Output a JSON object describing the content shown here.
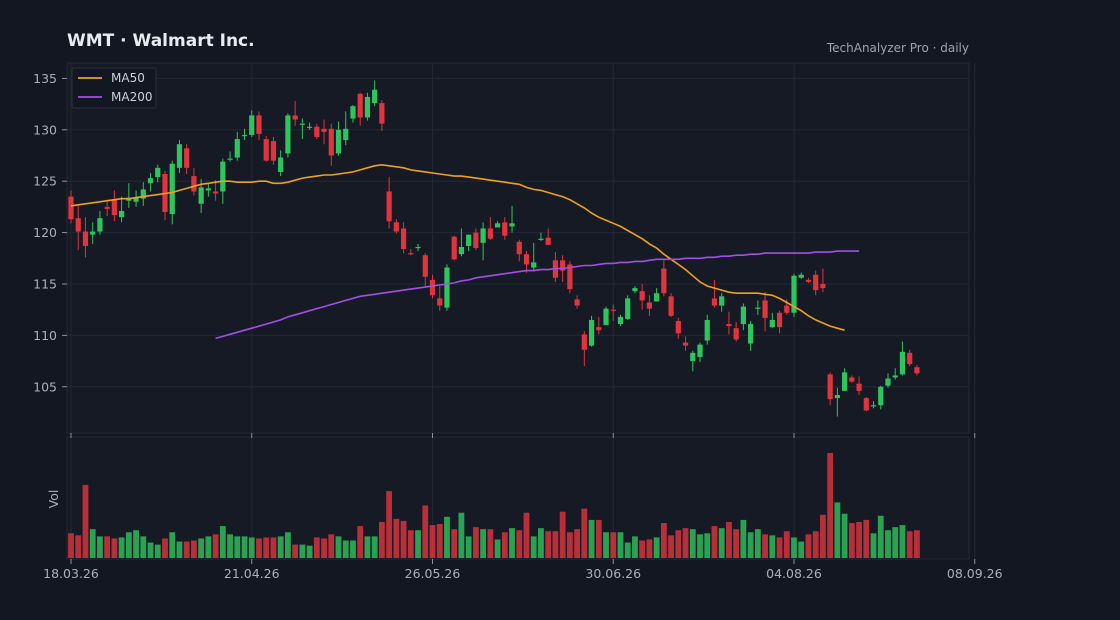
{
  "header": {
    "title": "WMT  ·  Walmart Inc.",
    "subtitle": "TechAnalyzer Pro · daily"
  },
  "colors": {
    "background": "#131722",
    "panel": "#161a25",
    "grid": "#232836",
    "up": "#2ec55e",
    "down": "#e0343f",
    "ma50": "#f0a020",
    "ma200": "#a34ee8"
  },
  "chart_data": {
    "type": "candlestick",
    "title": "WMT  ·  Walmart Inc.",
    "ylim": [
      100.5,
      136.5
    ],
    "y_ticks": [
      105,
      110,
      115,
      120,
      125,
      130,
      135
    ],
    "x_ticks": [
      "18.03.26",
      "21.04.26",
      "26.05.26",
      "30.06.26",
      "04.08.26",
      "08.09.26"
    ],
    "x_tick_index": [
      0,
      25,
      50,
      75,
      100,
      125
    ],
    "volume_label": "Vol",
    "grid": true,
    "legend_position": "top-left",
    "legend": [
      "MA50",
      "MA200"
    ],
    "candles": [
      [
        123.5,
        121.3,
        124.1,
        120.9
      ],
      [
        121.4,
        120.1,
        122.6,
        118.3
      ],
      [
        120.1,
        118.7,
        121.5,
        117.6
      ],
      [
        119.8,
        120.1,
        121.0,
        118.9
      ],
      [
        120.1,
        121.4,
        122.1,
        119.8
      ],
      [
        122.5,
        122.3,
        123.2,
        121.6
      ],
      [
        123.2,
        121.7,
        124.1,
        121.1
      ],
      [
        121.5,
        122.1,
        123.5,
        121.0
      ],
      [
        123.1,
        123.4,
        124.8,
        122.4
      ],
      [
        123.0,
        123.4,
        124.1,
        122.5
      ],
      [
        123.3,
        124.2,
        124.9,
        122.6
      ],
      [
        124.8,
        125.3,
        125.8,
        124.0
      ],
      [
        125.4,
        126.3,
        126.6,
        124.9
      ],
      [
        125.7,
        122.0,
        126.0,
        121.2
      ],
      [
        121.8,
        126.7,
        127.0,
        120.8
      ],
      [
        126.3,
        128.6,
        129.0,
        125.8
      ],
      [
        128.2,
        126.3,
        128.6,
        125.7
      ],
      [
        125.5,
        124.0,
        126.3,
        123.6
      ],
      [
        122.8,
        124.4,
        125.2,
        121.9
      ],
      [
        124.1,
        124.3,
        124.8,
        123.5
      ],
      [
        124.0,
        123.8,
        125.1,
        123.1
      ],
      [
        124.0,
        126.9,
        127.2,
        122.8
      ],
      [
        127.1,
        127.2,
        127.9,
        126.9
      ],
      [
        127.3,
        129.1,
        129.8,
        127.0
      ],
      [
        129.4,
        129.5,
        130.1,
        129.0
      ],
      [
        129.5,
        131.4,
        131.9,
        129.3
      ],
      [
        131.4,
        129.6,
        131.8,
        129.0
      ],
      [
        129.1,
        127.0,
        129.4,
        126.9
      ],
      [
        128.9,
        127.0,
        129.3,
        126.6
      ],
      [
        125.9,
        127.3,
        128.0,
        125.5
      ],
      [
        127.7,
        131.4,
        131.6,
        127.3
      ],
      [
        131.4,
        131.0,
        132.8,
        130.4
      ],
      [
        130.6,
        130.6,
        131.1,
        129.1
      ],
      [
        130.2,
        130.3,
        130.7,
        130.0
      ],
      [
        130.3,
        129.3,
        130.6,
        129.1
      ],
      [
        130.1,
        129.8,
        131.0,
        128.6
      ],
      [
        130.1,
        127.5,
        130.6,
        126.5
      ],
      [
        127.7,
        130.0,
        130.8,
        127.5
      ],
      [
        129.0,
        130.1,
        131.8,
        128.5
      ],
      [
        131.1,
        132.3,
        132.4,
        130.7
      ],
      [
        133.5,
        131.2,
        133.6,
        130.4
      ],
      [
        131.2,
        133.2,
        133.6,
        130.9
      ],
      [
        132.6,
        133.9,
        134.8,
        132.3
      ],
      [
        132.6,
        130.6,
        132.9,
        129.9
      ],
      [
        124.0,
        121.1,
        125.4,
        120.4
      ],
      [
        121.0,
        120.1,
        121.3,
        119.9
      ],
      [
        120.4,
        118.4,
        121.0,
        118.0
      ],
      [
        118.0,
        117.9,
        118.4,
        117.8
      ],
      [
        118.5,
        118.6,
        118.9,
        118.2
      ],
      [
        117.8,
        115.7,
        118.0,
        114.7
      ],
      [
        115.4,
        113.9,
        115.9,
        113.6
      ],
      [
        113.6,
        112.9,
        114.8,
        112.4
      ],
      [
        112.7,
        116.6,
        116.9,
        112.4
      ],
      [
        119.6,
        117.4,
        119.7,
        117.3
      ],
      [
        117.9,
        118.6,
        120.4,
        117.7
      ],
      [
        118.7,
        119.8,
        119.8,
        118.2
      ],
      [
        120.0,
        118.5,
        120.4,
        118.3
      ],
      [
        119.0,
        120.4,
        121.0,
        117.3
      ],
      [
        120.4,
        119.4,
        121.5,
        119.3
      ],
      [
        120.5,
        120.9,
        121.1,
        120.6
      ],
      [
        121.0,
        119.7,
        121.5,
        119.3
      ],
      [
        120.6,
        120.9,
        122.6,
        120.0
      ],
      [
        119.1,
        117.9,
        119.3,
        117.2
      ],
      [
        117.9,
        116.9,
        118.2,
        116.1
      ],
      [
        116.6,
        117.1,
        119.0,
        116.2
      ],
      [
        119.3,
        119.4,
        120.0,
        119.2
      ],
      [
        119.5,
        118.8,
        120.4,
        118.8
      ],
      [
        117.3,
        115.6,
        118.1,
        115.2
      ],
      [
        117.3,
        116.3,
        117.8,
        115.2
      ],
      [
        116.9,
        114.5,
        117.2,
        114.1
      ],
      [
        113.5,
        112.9,
        113.9,
        112.6
      ],
      [
        110.1,
        108.6,
        110.4,
        107.0
      ],
      [
        109.0,
        111.5,
        111.9,
        108.9
      ],
      [
        110.8,
        110.5,
        111.8,
        110.1
      ],
      [
        111.0,
        112.6,
        112.8,
        111.1
      ],
      [
        112.5,
        112.4,
        113.0,
        111.4
      ],
      [
        111.1,
        111.8,
        112.0,
        110.9
      ],
      [
        111.6,
        113.6,
        113.9,
        111.5
      ],
      [
        114.3,
        114.6,
        114.8,
        114.1
      ],
      [
        114.3,
        113.4,
        115.0,
        112.5
      ],
      [
        113.2,
        112.6,
        113.9,
        111.9
      ],
      [
        113.3,
        114.1,
        114.6,
        113.3
      ],
      [
        116.5,
        114.1,
        117.3,
        113.8
      ],
      [
        113.8,
        111.9,
        114.1,
        111.8
      ],
      [
        111.4,
        110.2,
        111.7,
        109.7
      ],
      [
        109.3,
        109.0,
        109.9,
        108.5
      ],
      [
        107.5,
        108.3,
        108.5,
        106.5
      ],
      [
        107.9,
        109.1,
        109.3,
        107.4
      ],
      [
        109.5,
        111.5,
        112.0,
        109.1
      ],
      [
        113.6,
        112.9,
        115.4,
        112.7
      ],
      [
        112.9,
        113.8,
        114.1,
        112.3
      ],
      [
        111.1,
        110.9,
        112.3,
        110.1
      ],
      [
        110.7,
        109.6,
        111.3,
        109.4
      ],
      [
        111.1,
        112.8,
        113.1,
        110.5
      ],
      [
        109.2,
        111.1,
        111.4,
        108.5
      ],
      [
        112.6,
        112.7,
        113.4,
        112.0
      ],
      [
        113.4,
        111.7,
        114.2,
        110.4
      ],
      [
        110.8,
        111.5,
        112.2,
        110.7
      ],
      [
        112.2,
        110.8,
        112.4,
        110.2
      ],
      [
        112.9,
        112.2,
        113.5,
        112.0
      ],
      [
        112.2,
        115.8,
        116.0,
        111.8
      ],
      [
        115.6,
        115.9,
        116.1,
        115.5
      ],
      [
        115.4,
        115.2,
        115.6,
        115.1
      ],
      [
        115.9,
        114.4,
        116.3,
        113.9
      ],
      [
        115.0,
        114.6,
        116.5,
        114.2
      ],
      [
        106.2,
        103.8,
        106.4,
        103.2
      ],
      [
        103.9,
        104.2,
        104.9,
        102.1
      ],
      [
        104.6,
        106.4,
        106.8,
        104.6
      ],
      [
        105.9,
        105.5,
        106.1,
        105.4
      ],
      [
        105.3,
        104.6,
        106.0,
        104.2
      ],
      [
        103.9,
        102.7,
        104.0,
        102.6
      ],
      [
        103.1,
        103.2,
        103.6,
        102.9
      ],
      [
        103.2,
        105.0,
        105.1,
        102.8
      ],
      [
        105.1,
        105.8,
        106.3,
        104.9
      ],
      [
        105.9,
        106.1,
        106.8,
        105.7
      ],
      [
        106.2,
        108.4,
        109.4,
        106.1
      ],
      [
        108.3,
        107.2,
        108.6,
        107.0
      ],
      [
        106.9,
        106.3,
        107.1,
        106.1
      ]
    ],
    "volume": [
      24,
      22,
      71,
      28,
      21,
      21,
      19,
      20,
      25,
      27,
      21,
      15,
      13,
      19,
      25,
      16,
      16,
      17,
      19,
      21,
      23,
      31,
      23,
      21,
      21,
      20,
      19,
      20,
      20,
      21,
      25,
      13,
      13,
      12,
      20,
      19,
      23,
      21,
      17,
      17,
      31,
      21,
      21,
      35,
      65,
      38,
      36,
      27,
      27,
      51,
      32,
      33,
      40,
      28,
      44,
      21,
      30,
      28,
      28,
      18,
      25,
      29,
      27,
      44,
      21,
      29,
      26,
      26,
      45,
      25,
      28,
      48,
      37,
      37,
      25,
      25,
      25,
      15,
      21,
      17,
      18,
      20,
      34,
      22,
      27,
      29,
      28,
      23,
      24,
      31,
      29,
      35,
      28,
      37,
      25,
      28,
      23,
      22,
      20,
      26,
      20,
      16,
      23,
      26,
      42,
      102,
      54,
      43,
      34,
      35,
      37,
      24,
      41,
      27,
      30,
      32,
      26,
      27
    ],
    "ma50_start_index": 0,
    "ma50": [
      122.6,
      122.7,
      122.8,
      122.9,
      123.0,
      123.1,
      123.2,
      123.3,
      123.3,
      123.4,
      123.5,
      123.6,
      123.7,
      123.8,
      123.9,
      124.1,
      124.3,
      124.5,
      124.7,
      124.8,
      124.9,
      125.0,
      125.0,
      124.9,
      124.9,
      124.9,
      125.0,
      125.0,
      124.8,
      124.8,
      124.9,
      125.1,
      125.3,
      125.4,
      125.5,
      125.6,
      125.6,
      125.7,
      125.8,
      125.9,
      126.1,
      126.3,
      126.5,
      126.6,
      126.5,
      126.4,
      126.3,
      126.1,
      126.0,
      125.9,
      125.8,
      125.7,
      125.6,
      125.5,
      125.5,
      125.4,
      125.3,
      125.2,
      125.1,
      125.0,
      124.9,
      124.8,
      124.7,
      124.4,
      124.2,
      124.1,
      123.9,
      123.7,
      123.5,
      123.2,
      122.8,
      122.4,
      121.9,
      121.5,
      121.2,
      120.9,
      120.6,
      120.2,
      119.8,
      119.4,
      118.9,
      118.5,
      117.9,
      117.4,
      116.9,
      116.4,
      115.8,
      115.2,
      114.8,
      114.6,
      114.4,
      114.2,
      114.1,
      114.1,
      114.1,
      114.1,
      114.0,
      113.9,
      113.6,
      113.2,
      112.8,
      112.4,
      111.9,
      111.5,
      111.2,
      110.9,
      110.7,
      110.5
    ],
    "ma200_start_index": 20,
    "ma200": [
      109.7,
      109.9,
      110.1,
      110.3,
      110.5,
      110.7,
      110.9,
      111.1,
      111.3,
      111.5,
      111.8,
      112.0,
      112.2,
      112.4,
      112.6,
      112.8,
      113.0,
      113.2,
      113.4,
      113.6,
      113.8,
      113.9,
      114.0,
      114.1,
      114.2,
      114.3,
      114.4,
      114.5,
      114.6,
      114.7,
      114.8,
      114.9,
      115.0,
      115.1,
      115.3,
      115.4,
      115.6,
      115.7,
      115.8,
      115.9,
      116.0,
      116.1,
      116.2,
      116.3,
      116.3,
      116.4,
      116.4,
      116.5,
      116.5,
      116.6,
      116.7,
      116.8,
      116.8,
      116.9,
      117.0,
      117.0,
      117.1,
      117.1,
      117.2,
      117.2,
      117.3,
      117.4,
      117.4,
      117.4,
      117.4,
      117.5,
      117.5,
      117.5,
      117.6,
      117.6,
      117.7,
      117.7,
      117.8,
      117.8,
      117.9,
      117.9,
      118.0,
      118.0,
      118.0,
      118.0,
      118.0,
      118.0,
      118.0,
      118.1,
      118.1,
      118.1,
      118.2,
      118.2,
      118.2,
      118.2
    ]
  }
}
